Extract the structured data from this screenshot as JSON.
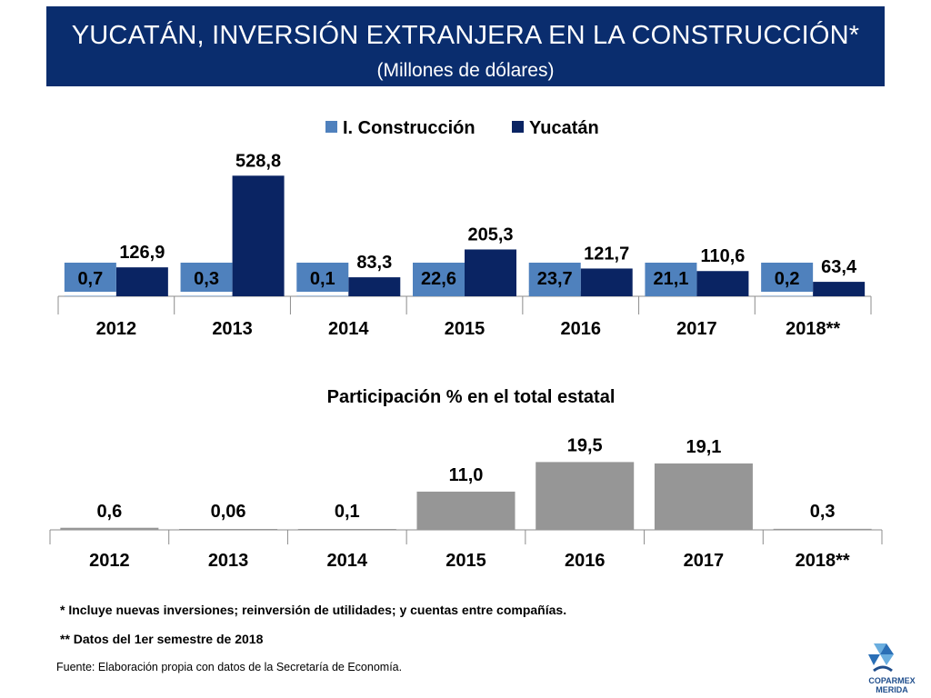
{
  "header": {
    "title": "YUCATÁN, INVERSIÓN EXTRANJERA EN LA CONSTRUCCIÓN*",
    "subtitle": "(Millones de dólares)"
  },
  "chart_data": [
    {
      "type": "bar",
      "categories": [
        "2012",
        "2013",
        "2014",
        "2015",
        "2016",
        "2017",
        "2018**"
      ],
      "series": [
        {
          "name": "I. Construcción",
          "color": "#4f81bd",
          "values": [
            0.7,
            0.3,
            0.1,
            22.6,
            23.7,
            21.1,
            0.2
          ],
          "labels": [
            "0,7",
            "0,3",
            "0,1",
            "22,6",
            "23,7",
            "21,1",
            "0,2"
          ]
        },
        {
          "name": "Yucatán",
          "color": "#0a2463",
          "values": [
            126.9,
            528.8,
            83.3,
            205.3,
            121.7,
            110.6,
            63.4
          ],
          "labels": [
            "126,9",
            "528,8",
            "83,3",
            "205,3",
            "121,7",
            "110,6",
            "63,4"
          ]
        }
      ],
      "ylim": [
        0,
        530
      ],
      "grid": false,
      "legend": "top-center"
    },
    {
      "type": "bar",
      "title": "Participación % en el total estatal",
      "categories": [
        "2012",
        "2013",
        "2014",
        "2015",
        "2016",
        "2017",
        "2018**"
      ],
      "values": [
        0.6,
        0.06,
        0.1,
        11.0,
        19.5,
        19.1,
        0.3
      ],
      "labels": [
        "0,6",
        "0,06",
        "0,1",
        "11,0",
        "19,5",
        "19,1",
        "0,3"
      ],
      "color": "#969696",
      "ylim": [
        0,
        19.6
      ],
      "grid": false
    }
  ],
  "footnotes": [
    "* Incluye nuevas inversiones; reinversión de utilidades; y cuentas entre compañías.",
    "** Datos del 1er semestre de 2018"
  ],
  "source": "Fuente: Elaboración propia con datos de la Secretaría de Economía.",
  "logo": {
    "line1": "COPARMEX",
    "line2": "MERIDA"
  }
}
